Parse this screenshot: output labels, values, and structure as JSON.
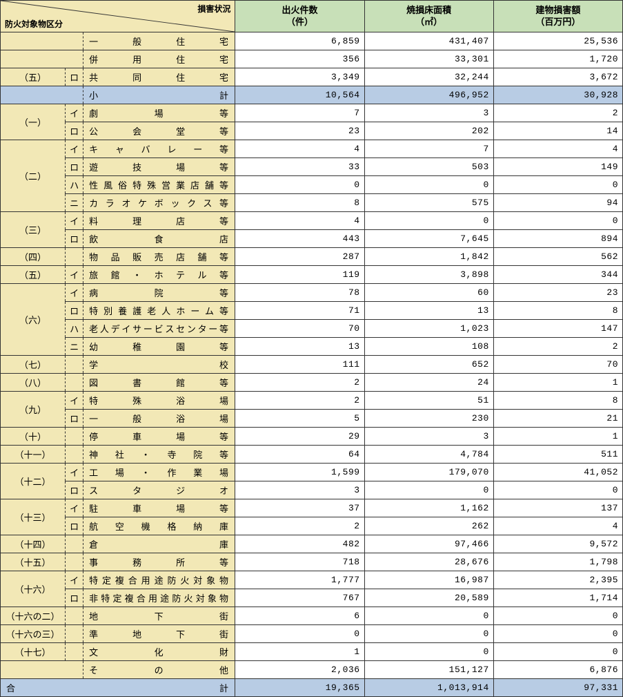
{
  "header": {
    "diag_top": "損害状況",
    "diag_bottom": "防火対象物区分",
    "cols": [
      "出火件数\n（件）",
      "焼損床面積\n（㎡）",
      "建物損害額\n（百万円）"
    ]
  },
  "rows": [
    {
      "g": "",
      "s": "",
      "l": "一般住宅",
      "v": [
        "6,859",
        "431,407",
        "25,536"
      ],
      "gspan": 1,
      "gtype": "blank2"
    },
    {
      "g": "",
      "s": "",
      "l": "併用住宅",
      "v": [
        "356",
        "33,301",
        "1,720"
      ],
      "gspan": 1,
      "gtype": "blank2"
    },
    {
      "g": "（五）",
      "s": "ロ",
      "l": "共同住宅",
      "v": [
        "3,349",
        "32,244",
        "3,672"
      ],
      "gspan": 1
    },
    {
      "g": "",
      "s": "",
      "l": "小計",
      "v": [
        "10,564",
        "496,952",
        "30,928"
      ],
      "cls": "blue",
      "gtype": "blank2"
    },
    {
      "g": "（一）",
      "s": "イ",
      "l": "劇場等",
      "v": [
        "7",
        "3",
        "2"
      ],
      "gspan": 2
    },
    {
      "s": "ロ",
      "l": "公会堂等",
      "v": [
        "23",
        "202",
        "14"
      ]
    },
    {
      "g": "（二）",
      "s": "イ",
      "l": "キャバレー等",
      "v": [
        "4",
        "7",
        "4"
      ],
      "gspan": 4
    },
    {
      "s": "ロ",
      "l": "遊技場等",
      "v": [
        "33",
        "503",
        "149"
      ]
    },
    {
      "s": "ハ",
      "l": "性風俗特殊営業店舗等",
      "v": [
        "0",
        "0",
        "0"
      ]
    },
    {
      "s": "ニ",
      "l": "カラオケボックス等",
      "v": [
        "8",
        "575",
        "94"
      ]
    },
    {
      "g": "（三）",
      "s": "イ",
      "l": "料理店等",
      "v": [
        "4",
        "0",
        "0"
      ],
      "gspan": 2
    },
    {
      "s": "ロ",
      "l": "飲食店",
      "v": [
        "443",
        "7,645",
        "894"
      ]
    },
    {
      "g": "（四）",
      "s": "",
      "l": "物品販売店舗等",
      "v": [
        "287",
        "1,842",
        "562"
      ],
      "gspan": 1
    },
    {
      "g": "（五）",
      "s": "イ",
      "l": "旅館・ホテル等",
      "v": [
        "119",
        "3,898",
        "344"
      ],
      "gspan": 1
    },
    {
      "g": "（六）",
      "s": "イ",
      "l": "病院等",
      "v": [
        "78",
        "60",
        "23"
      ],
      "gspan": 4
    },
    {
      "s": "ロ",
      "l": "特別養護老人ホーム等",
      "v": [
        "71",
        "13",
        "8"
      ]
    },
    {
      "s": "ハ",
      "l": "老人デイサービスセンター等",
      "v": [
        "70",
        "1,023",
        "147"
      ]
    },
    {
      "s": "ニ",
      "l": "幼稚園等",
      "v": [
        "13",
        "108",
        "2"
      ]
    },
    {
      "g": "（七）",
      "s": "",
      "l": "学校",
      "v": [
        "111",
        "652",
        "70"
      ],
      "gspan": 1
    },
    {
      "g": "（八）",
      "s": "",
      "l": "図書館等",
      "v": [
        "2",
        "24",
        "1"
      ],
      "gspan": 1
    },
    {
      "g": "（九）",
      "s": "イ",
      "l": "特殊浴場",
      "v": [
        "2",
        "51",
        "8"
      ],
      "gspan": 2
    },
    {
      "s": "ロ",
      "l": "一般浴場",
      "v": [
        "5",
        "230",
        "21"
      ]
    },
    {
      "g": "（十）",
      "s": "",
      "l": "停車場等",
      "v": [
        "29",
        "3",
        "1"
      ],
      "gspan": 1
    },
    {
      "g": "（十一）",
      "s": "",
      "l": "神社・寺院等",
      "v": [
        "64",
        "4,784",
        "511"
      ],
      "gspan": 1
    },
    {
      "g": "（十二）",
      "s": "イ",
      "l": "工場・作業場",
      "v": [
        "1,599",
        "179,070",
        "41,052"
      ],
      "gspan": 2
    },
    {
      "s": "ロ",
      "l": "スタジオ",
      "v": [
        "3",
        "0",
        "0"
      ]
    },
    {
      "g": "（十三）",
      "s": "イ",
      "l": "駐車場等",
      "v": [
        "37",
        "1,162",
        "137"
      ],
      "gspan": 2
    },
    {
      "s": "ロ",
      "l": "航空機格納庫",
      "v": [
        "2",
        "262",
        "4"
      ]
    },
    {
      "g": "（十四）",
      "s": "",
      "l": "倉庫",
      "v": [
        "482",
        "97,466",
        "9,572"
      ],
      "gspan": 1
    },
    {
      "g": "（十五）",
      "s": "",
      "l": "事務所等",
      "v": [
        "718",
        "28,676",
        "1,798"
      ],
      "gspan": 1
    },
    {
      "g": "（十六）",
      "s": "イ",
      "l": "特定複合用途防火対象物",
      "v": [
        "1,777",
        "16,987",
        "2,395"
      ],
      "gspan": 2
    },
    {
      "s": "ロ",
      "l": "非特定複合用途防火対象物",
      "v": [
        "767",
        "20,589",
        "1,714"
      ]
    },
    {
      "g": "（十六の二）",
      "s": "",
      "l": "地下街",
      "v": [
        "6",
        "0",
        "0"
      ],
      "gspan": 1
    },
    {
      "g": "（十六の三）",
      "s": "",
      "l": "準地下街",
      "v": [
        "0",
        "0",
        "0"
      ],
      "gspan": 1
    },
    {
      "g": "（十七）",
      "s": "",
      "l": "文化財",
      "v": [
        "1",
        "0",
        "0"
      ],
      "gspan": 1
    },
    {
      "g": "",
      "s": "",
      "l": "その他",
      "v": [
        "2,036",
        "151,127",
        "6,876"
      ],
      "gtype": "blank2"
    },
    {
      "g": "",
      "s": "",
      "l": "合計",
      "v": [
        "19,365",
        "1,013,914",
        "97,331"
      ],
      "cls": "blue",
      "gtype": "total"
    }
  ],
  "colors": {
    "yellow": "#f2e8b6",
    "green": "#c8e0b8",
    "blue": "#b8cce4",
    "border": "#333333"
  }
}
